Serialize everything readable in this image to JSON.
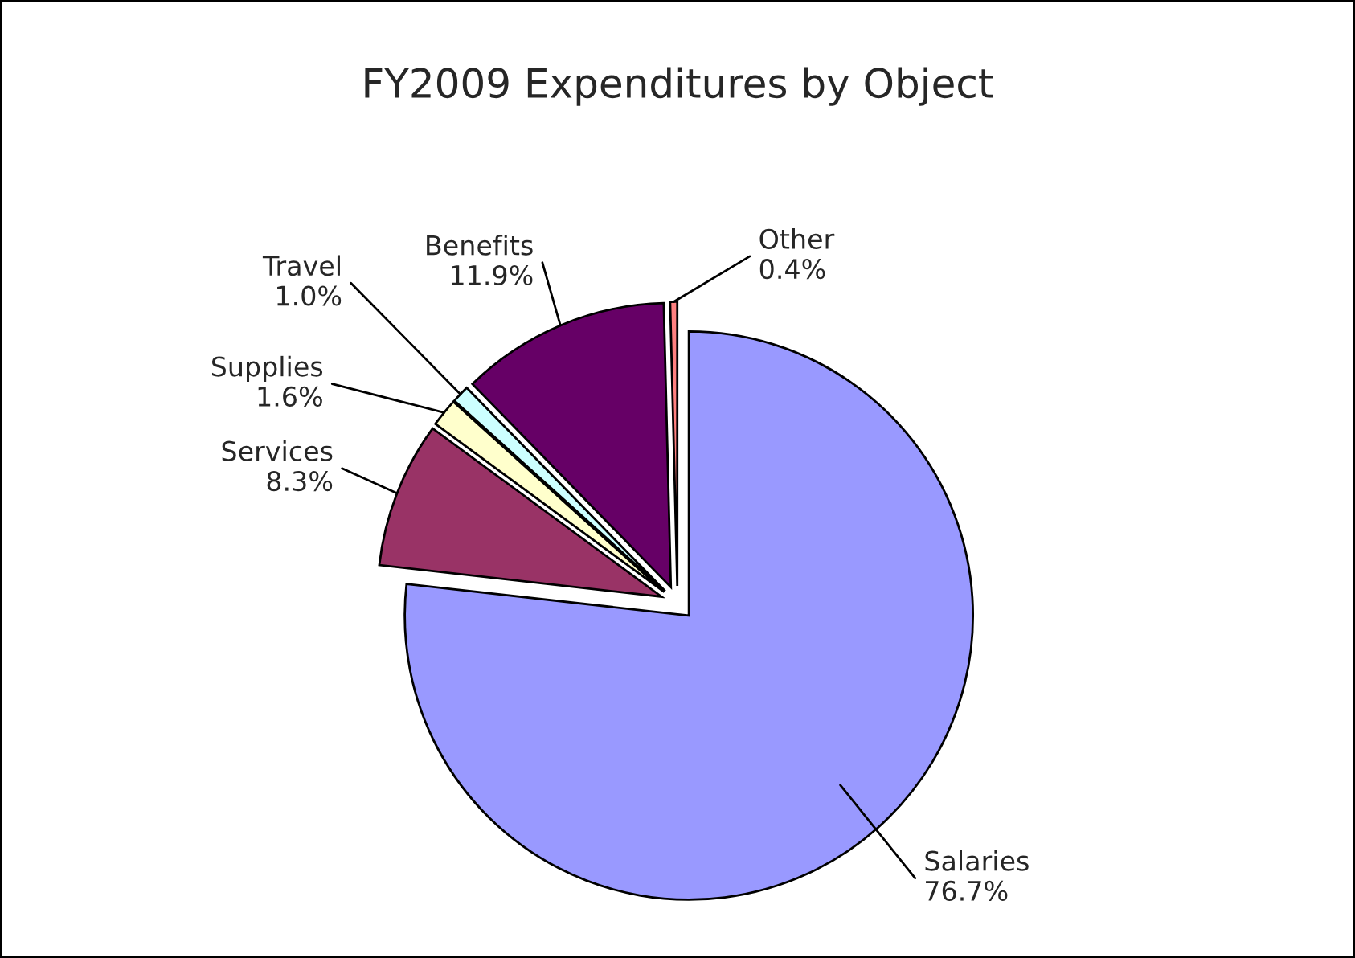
{
  "chart_data": {
    "type": "pie",
    "title": "FY2009 Expenditures by Object",
    "categories": [
      "Salaries",
      "Services",
      "Supplies",
      "Travel",
      "Benefits",
      "Other"
    ],
    "values": [
      76.7,
      8.3,
      1.6,
      1.0,
      11.9,
      0.4
    ],
    "value_labels": [
      "76.7%",
      "8.3%",
      "1.6%",
      "1.0%",
      "11.9%",
      "0.4%"
    ],
    "colors": [
      "#9999ff",
      "#993366",
      "#ffffcc",
      "#ccffff",
      "#660066",
      "#ff8080"
    ],
    "legend": false
  }
}
